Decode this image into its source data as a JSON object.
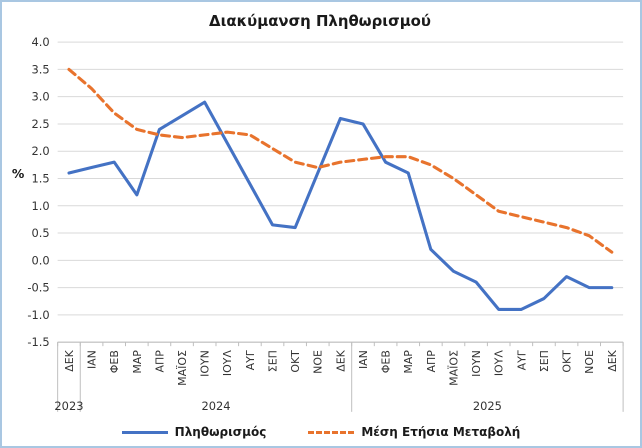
{
  "window": {
    "background": "#ffffff",
    "frame_border_color": "#a9c7e2"
  },
  "chart_data": {
    "type": "line",
    "title": "Διακύμανση Πληθωρισμού",
    "ylabel": "%",
    "xlabel": "",
    "ylim": [
      -1.5,
      4.0
    ],
    "ytick_step": 0.5,
    "ytick_labels": [
      "4.0",
      "3.5",
      "3.0",
      "2.5",
      "2.0",
      "1.5",
      "1.0",
      "0.5",
      "0.0",
      "-0.5",
      "-1.0",
      "-1.5"
    ],
    "grid": true,
    "legend_position": "bottom",
    "categories": [
      "ΔΕΚ",
      "ΙΑΝ",
      "ΦΕΒ",
      "ΜΑΡ",
      "ΑΠΡ",
      "ΜΑΪΟΣ",
      "ΙΟΥΝ",
      "ΙΟΥΛ",
      "ΑΥΓ",
      "ΣΕΠ",
      "ΟΚΤ",
      "ΝΟΕ",
      "ΔΕΚ",
      "ΙΑΝ",
      "ΦΕΒ",
      "ΜΑΡ",
      "ΑΠΡ",
      "ΜΑΪΟΣ",
      "ΙΟΥΝ",
      "ΙΟΥΛ",
      "ΑΥΓ",
      "ΣΕΠ",
      "ΟΚΤ",
      "ΝΟΕ",
      "ΔΕΚ"
    ],
    "year_groups": [
      {
        "label": "2023",
        "start": 0,
        "count": 1
      },
      {
        "label": "2024",
        "start": 1,
        "count": 12
      },
      {
        "label": "2025",
        "start": 13,
        "count": 12
      }
    ],
    "series": [
      {
        "name": "Πληθωρισμός",
        "color": "#4472C4",
        "style": "solid",
        "values": [
          1.6,
          1.7,
          1.8,
          1.2,
          2.4,
          2.65,
          2.9,
          2.15,
          1.4,
          0.65,
          0.6,
          1.6,
          2.6,
          2.5,
          1.8,
          1.6,
          0.2,
          -0.2,
          -0.4,
          -0.9,
          -0.9,
          -0.7,
          -0.3,
          -0.5,
          -0.5
        ]
      },
      {
        "name": "Μέση Ετήσια Μεταβολή",
        "color": "#E8732D",
        "style": "dashed",
        "values": [
          3.5,
          3.15,
          2.7,
          2.4,
          2.3,
          2.25,
          2.3,
          2.35,
          2.3,
          2.05,
          1.8,
          1.7,
          1.8,
          1.85,
          1.9,
          1.9,
          1.75,
          1.5,
          1.2,
          0.9,
          0.8,
          0.7,
          0.6,
          0.45,
          0.15
        ]
      }
    ]
  }
}
